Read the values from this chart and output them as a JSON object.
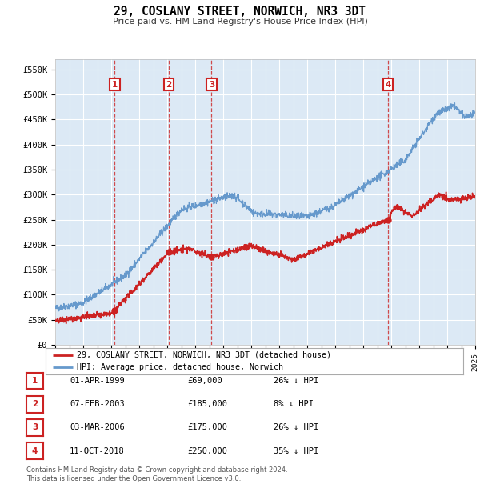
{
  "title": "29, COSLANY STREET, NORWICH, NR3 3DT",
  "subtitle": "Price paid vs. HM Land Registry's House Price Index (HPI)",
  "background_color": "#ffffff",
  "plot_bg_color": "#dce9f5",
  "grid_color": "#ffffff",
  "hpi_line_color": "#6699cc",
  "price_line_color": "#cc2222",
  "ylim": [
    0,
    570000
  ],
  "yticks": [
    0,
    50000,
    100000,
    150000,
    200000,
    250000,
    300000,
    350000,
    400000,
    450000,
    500000,
    550000
  ],
  "ytick_labels": [
    "£0",
    "£50K",
    "£100K",
    "£150K",
    "£200K",
    "£250K",
    "£300K",
    "£350K",
    "£400K",
    "£450K",
    "£500K",
    "£550K"
  ],
  "legend_label_price": "29, COSLANY STREET, NORWICH, NR3 3DT (detached house)",
  "legend_label_hpi": "HPI: Average price, detached house, Norwich",
  "transactions": [
    {
      "label": "1",
      "date": 1999.25,
      "price": 69000,
      "desc": "01-APR-1999",
      "price_str": "£69,000",
      "pct": "26% ↓ HPI"
    },
    {
      "label": "2",
      "date": 2003.1,
      "price": 185000,
      "desc": "07-FEB-2003",
      "price_str": "£185,000",
      "pct": "8% ↓ HPI"
    },
    {
      "label": "3",
      "date": 2006.17,
      "price": 175000,
      "desc": "03-MAR-2006",
      "price_str": "£175,000",
      "pct": "26% ↓ HPI"
    },
    {
      "label": "4",
      "date": 2018.78,
      "price": 250000,
      "desc": "11-OCT-2018",
      "price_str": "£250,000",
      "pct": "35% ↓ HPI"
    }
  ],
  "footnote1": "Contains HM Land Registry data © Crown copyright and database right 2024.",
  "footnote2": "This data is licensed under the Open Government Licence v3.0."
}
